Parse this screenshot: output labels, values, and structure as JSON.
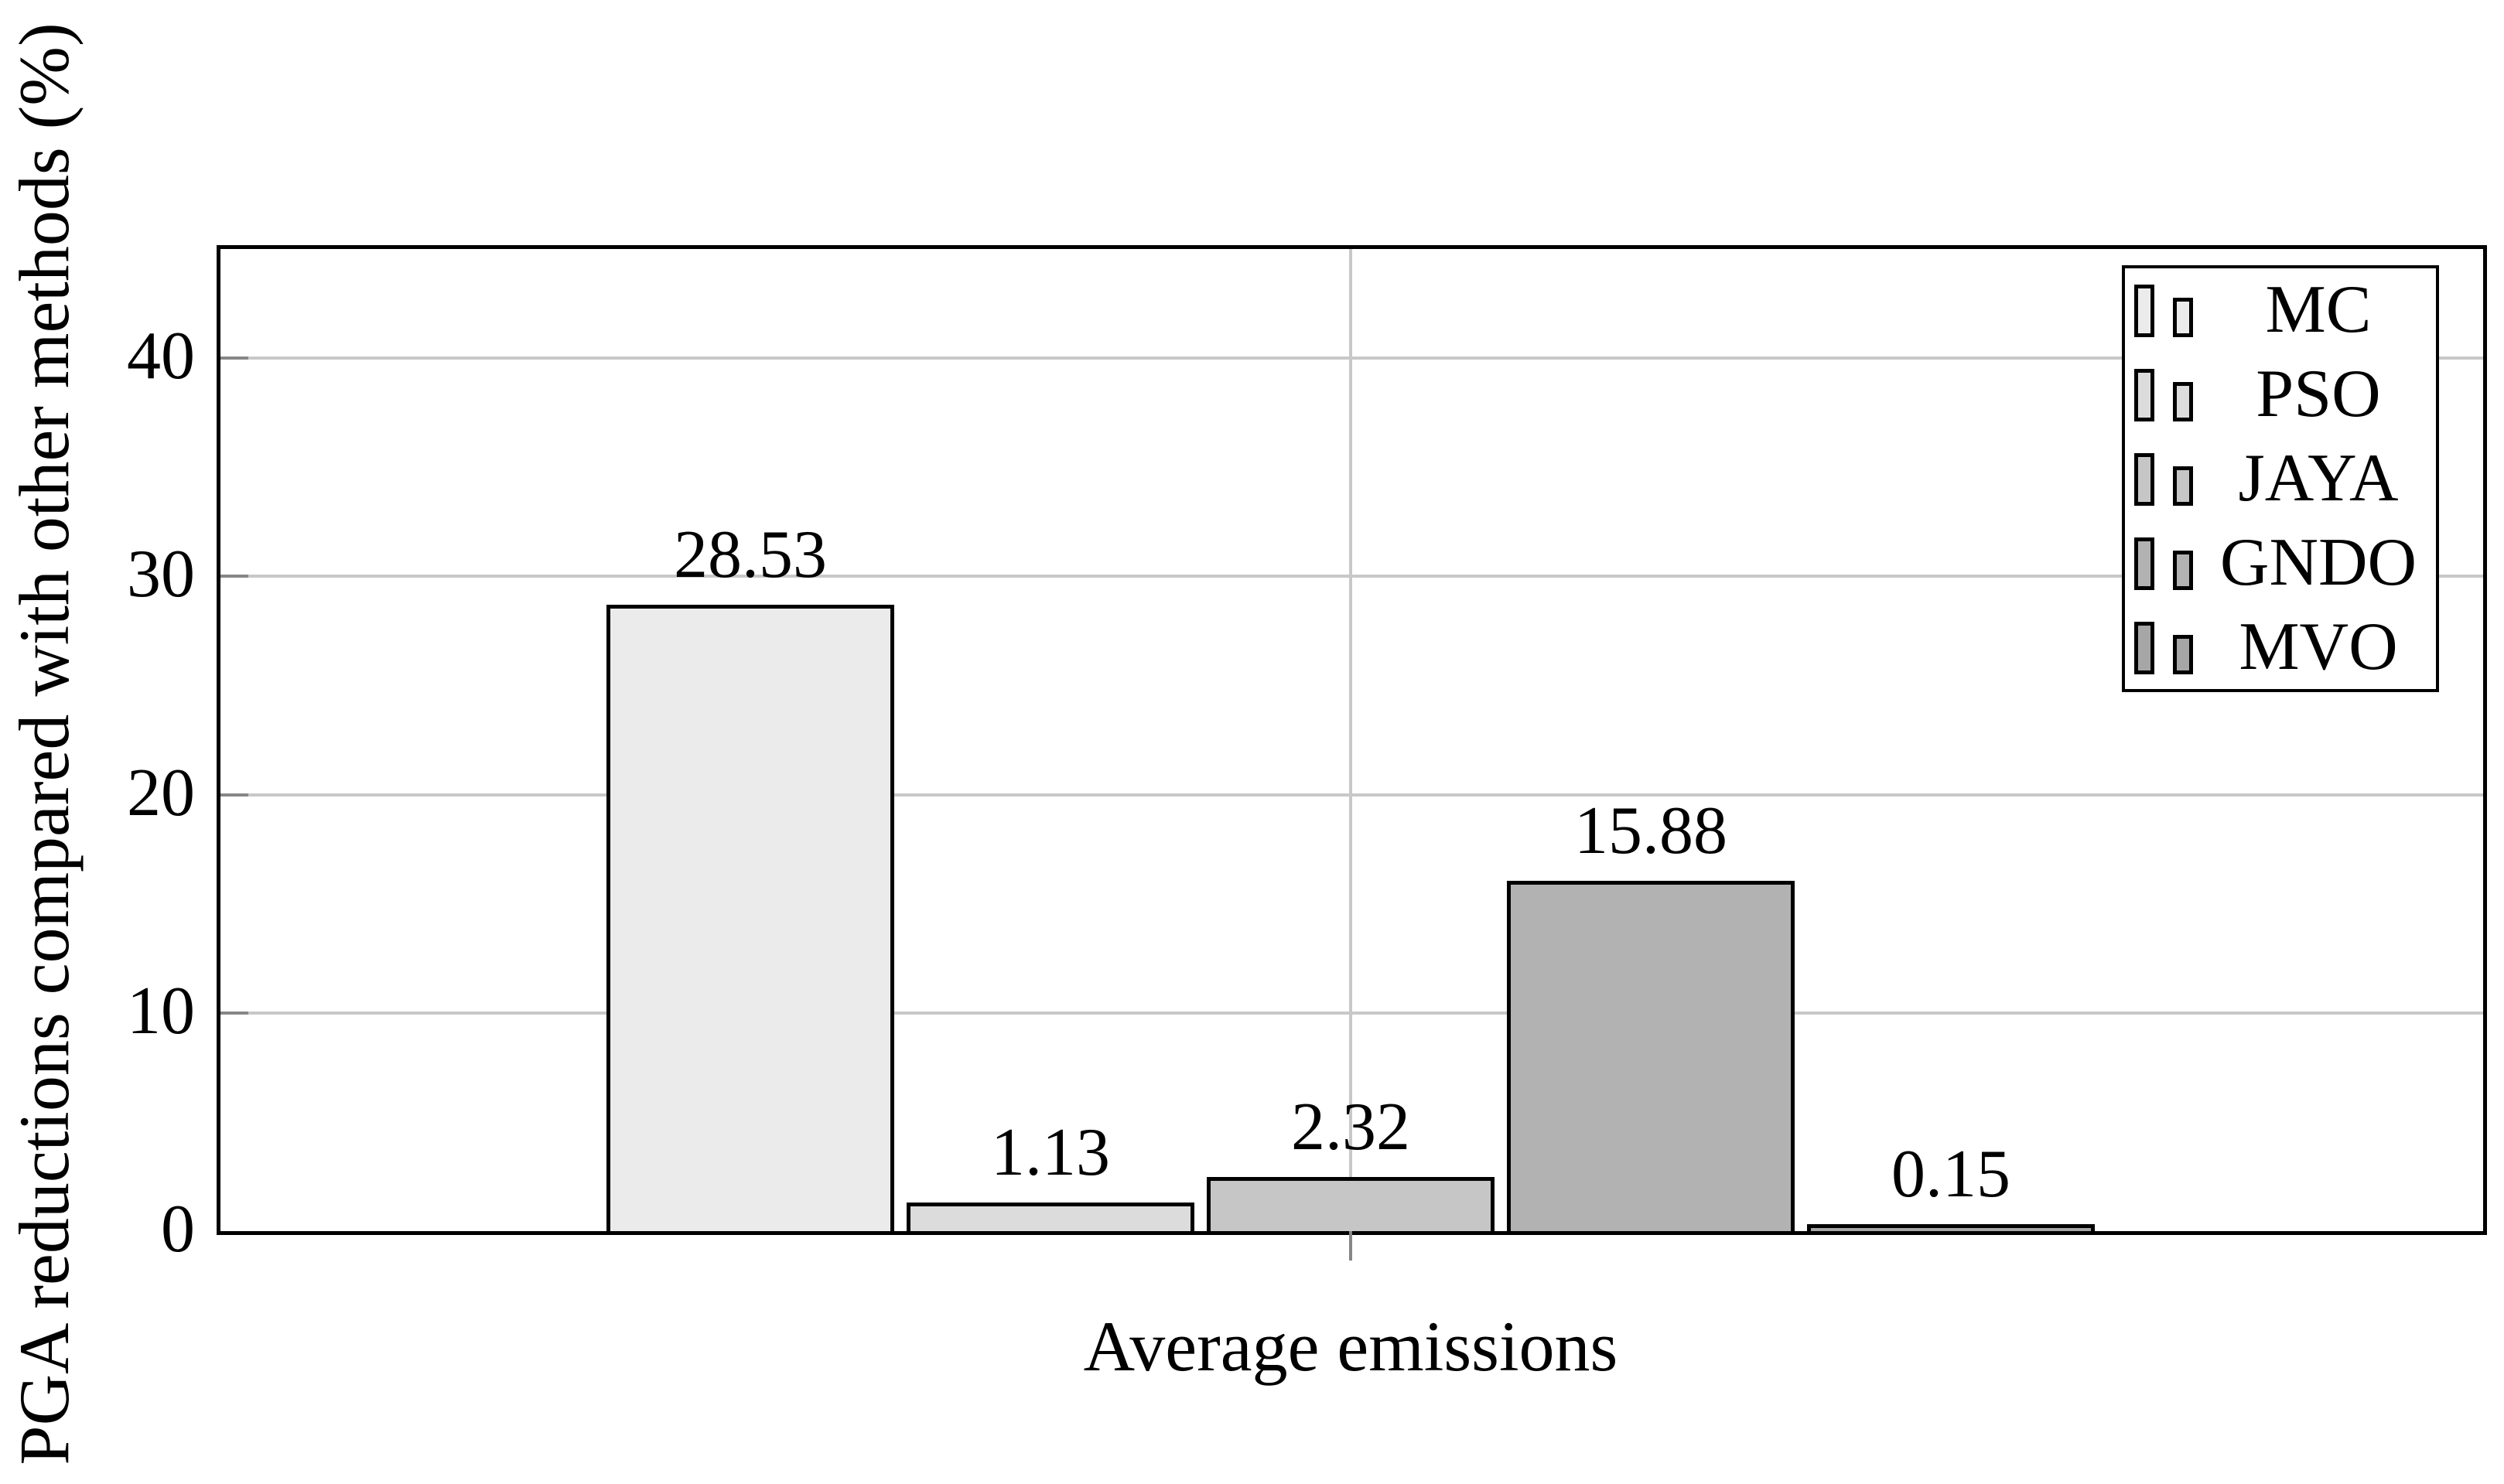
{
  "figure": {
    "ylabel": "PGA reductions compared with other methods (%)",
    "xlabel": "Average emissions"
  },
  "chart_data": {
    "type": "bar",
    "categories": [
      "Average emissions"
    ],
    "series": [
      {
        "name": "MC",
        "values": [
          28.53
        ],
        "color": "#ebebeb"
      },
      {
        "name": "PSO",
        "values": [
          1.13
        ],
        "color": "#dcdcdc"
      },
      {
        "name": "JAYA",
        "values": [
          2.32
        ],
        "color": "#c6c6c6"
      },
      {
        "name": "GNDO",
        "values": [
          15.88
        ],
        "color": "#b2b2b2"
      },
      {
        "name": "MVO",
        "values": [
          0.15
        ],
        "color": "#a6a6a6"
      }
    ],
    "bar_labels": [
      "28.53",
      "1.13",
      "2.32",
      "15.88",
      "0.15"
    ],
    "title": "",
    "xlabel": "Average emissions",
    "ylabel": "PGA reductions compared with other methods (%)",
    "ylim": [
      0,
      45
    ],
    "yticks": [
      0,
      10,
      20,
      30,
      40
    ],
    "grid": "horizontal gridlines at yticks plus one vertical gridline at category center",
    "legend_position": "top-right inside plot",
    "legend": [
      "MC",
      "PSO",
      "JAYA",
      "GNDO",
      "MVO"
    ]
  },
  "colors": {
    "axis": "#000000",
    "grid": "#c8c8c8",
    "tick": "#868686",
    "background": "#ffffff",
    "text": "#000000"
  }
}
